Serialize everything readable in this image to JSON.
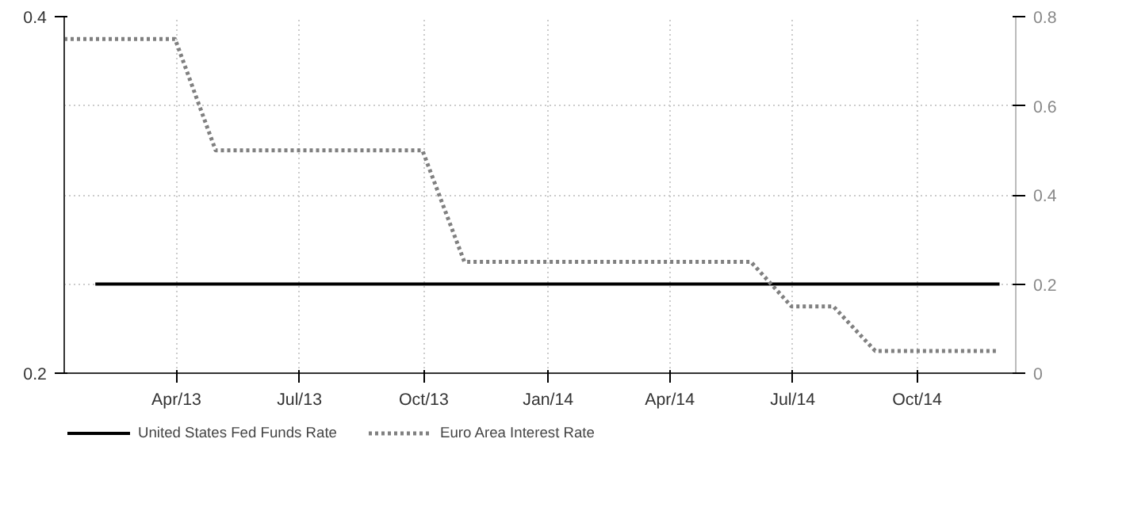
{
  "chart_data": {
    "type": "line",
    "x": [
      "2013-01-31",
      "2014-12-01"
    ],
    "xlim": [
      "2013-01-08",
      "2014-12-13"
    ],
    "xticks": [
      {
        "value": "2013-04-01",
        "label": "Apr/13"
      },
      {
        "value": "2013-07-01",
        "label": "Jul/13"
      },
      {
        "value": "2013-10-01",
        "label": "Oct/13"
      },
      {
        "value": "2014-01-01",
        "label": "Jan/14"
      },
      {
        "value": "2014-04-01",
        "label": "Apr/14"
      },
      {
        "value": "2014-07-01",
        "label": "Jul/14"
      },
      {
        "value": "2014-10-01",
        "label": "Oct/14"
      }
    ],
    "ylim": [
      0.2,
      0.4
    ],
    "yticks": [
      0.2,
      0.4
    ],
    "y2lim": [
      0,
      0.8
    ],
    "y2ticks": [
      0,
      0.2,
      0.4,
      0.6,
      0.8
    ],
    "series": [
      {
        "name": "United States Fed Funds Rate",
        "color": "#000000",
        "line_style": "solid",
        "values": [
          0.25,
          0.25
        ]
      },
      {
        "name": "Euro Area Interest Rate",
        "color": "#808080",
        "line_style": "dotted",
        "axis": "y2",
        "x": [
          "2013-01-08",
          "2013-03-31",
          "2013-04-30",
          "2013-09-30",
          "2013-10-31",
          "2014-05-31",
          "2014-06-30",
          "2014-07-31",
          "2014-08-31",
          "2014-11-30"
        ],
        "values": [
          0.75,
          0.75,
          0.5,
          0.5,
          0.25,
          0.25,
          0.15,
          0.15,
          0.05,
          0.05
        ]
      }
    ],
    "grid": true,
    "legend": "bottom"
  }
}
